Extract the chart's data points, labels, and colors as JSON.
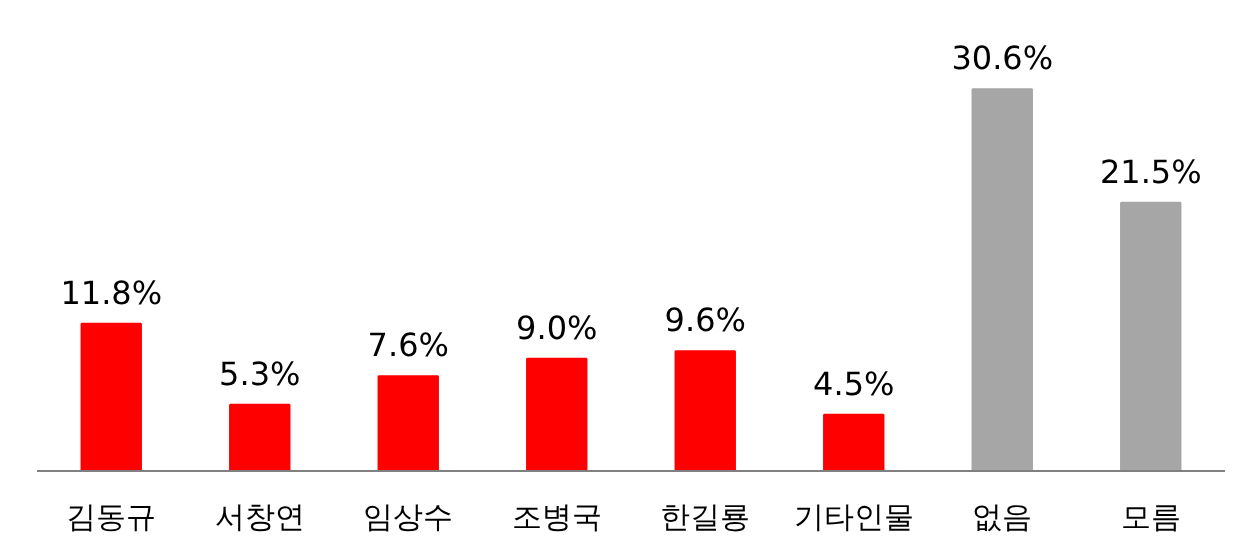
{
  "chart_data": {
    "type": "bar",
    "categories": [
      "김동규",
      "서창연",
      "임상수",
      "조병국",
      "한길룡",
      "기타인물",
      "없음",
      "모름"
    ],
    "values": [
      11.8,
      5.3,
      7.6,
      9.0,
      9.6,
      4.5,
      30.6,
      21.5
    ],
    "colors": [
      "#ff0000",
      "#ff0000",
      "#ff0000",
      "#ff0000",
      "#ff0000",
      "#ff0000",
      "#a6a6a6",
      "#a6a6a6"
    ],
    "value_labels": [
      "11.8%",
      "5.3%",
      "7.6%",
      "9.0%",
      "9.6%",
      "4.5%",
      "30.6%",
      "21.5%"
    ],
    "grid": false
  }
}
